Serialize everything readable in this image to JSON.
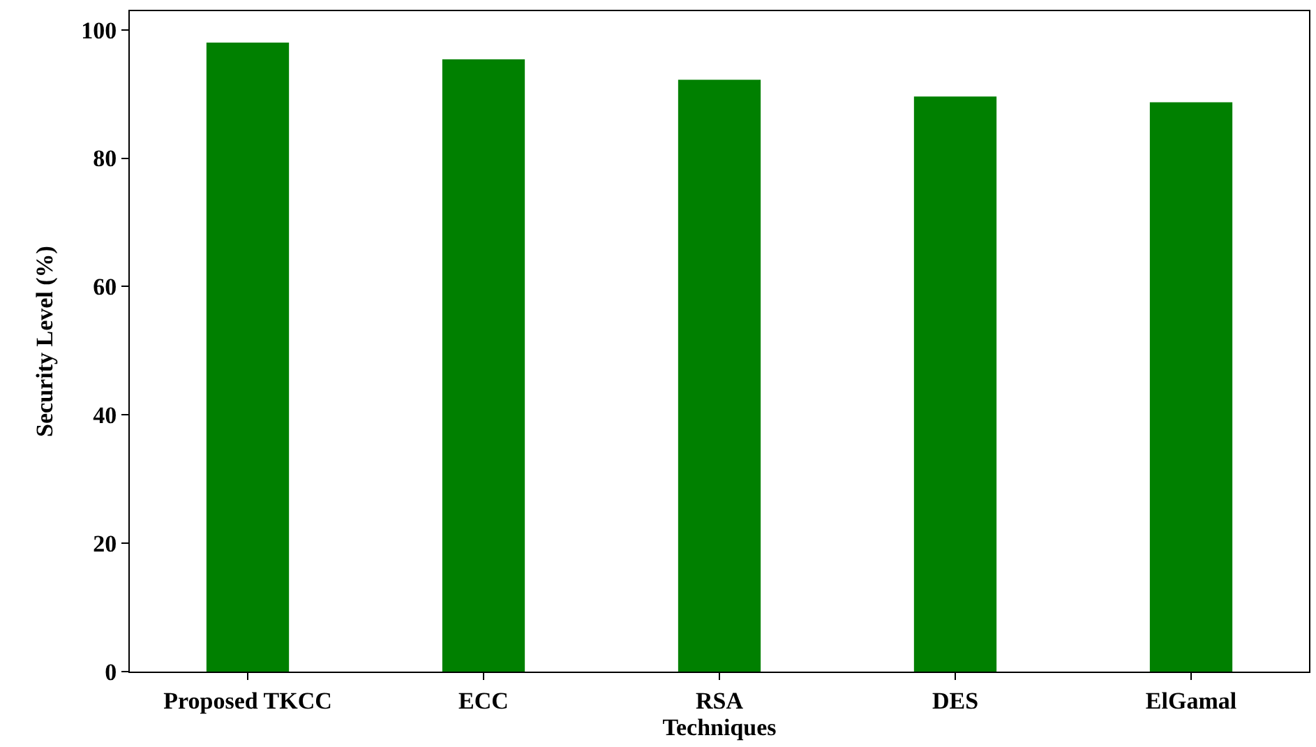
{
  "chart_data": {
    "type": "bar",
    "xlabel": "Techniques",
    "ylabel": "Security Level (%)",
    "categories": [
      "Proposed TKCC",
      "ECC",
      "RSA",
      "DES",
      "ElGamal"
    ],
    "values": [
      98.0,
      95.4,
      92.2,
      89.6,
      88.7
    ],
    "color": "#008000",
    "ylim": [
      0,
      102.9
    ],
    "yticks": [
      0,
      20,
      40,
      60,
      80,
      100
    ]
  }
}
